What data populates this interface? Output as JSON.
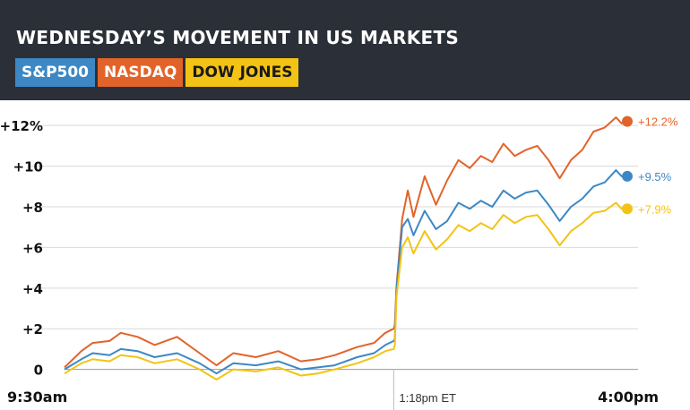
{
  "header": {
    "title": "WEDNESDAY’S MOVEMENT IN US MARKETS"
  },
  "colors": {
    "header_bg": "#2b3038",
    "sp500": "#3d88c4",
    "nasdaq": "#e2632a",
    "dow": "#f3c315"
  },
  "legend": [
    {
      "name": "S&P500",
      "color": "#3d88c4"
    },
    {
      "name": "NASDAQ",
      "color": "#e2632a"
    },
    {
      "name": "DOW JONES",
      "color": "#f3c315"
    }
  ],
  "chart_data": {
    "type": "line",
    "title": "WEDNESDAY’S MOVEMENT IN US MARKETS",
    "y_ticks": [
      {
        "value": 0,
        "label": "0"
      },
      {
        "value": 2,
        "label": "+2"
      },
      {
        "value": 4,
        "label": "+4"
      },
      {
        "value": 6,
        "label": "+6"
      },
      {
        "value": 8,
        "label": "+8"
      },
      {
        "value": 10,
        "label": "+10"
      },
      {
        "value": 12,
        "label": "+12%"
      }
    ],
    "ylim": [
      -0.5,
      12.8
    ],
    "x_labels": {
      "start": "9:30am",
      "end": "4:00pm",
      "event": "1:18pm ET"
    },
    "x_event_fraction": 0.585,
    "grid": true,
    "series": [
      {
        "name": "NASDAQ",
        "color": "#e2632a",
        "end_label": "+12.2%",
        "points": [
          [
            0,
            0.1
          ],
          [
            0.03,
            0.9
          ],
          [
            0.05,
            1.3
          ],
          [
            0.08,
            1.4
          ],
          [
            0.1,
            1.8
          ],
          [
            0.13,
            1.6
          ],
          [
            0.16,
            1.2
          ],
          [
            0.2,
            1.6
          ],
          [
            0.24,
            0.8
          ],
          [
            0.27,
            0.2
          ],
          [
            0.3,
            0.8
          ],
          [
            0.34,
            0.6
          ],
          [
            0.38,
            0.9
          ],
          [
            0.42,
            0.4
          ],
          [
            0.45,
            0.5
          ],
          [
            0.48,
            0.7
          ],
          [
            0.52,
            1.1
          ],
          [
            0.55,
            1.3
          ],
          [
            0.57,
            1.8
          ],
          [
            0.585,
            2.0
          ],
          [
            0.587,
            2.2
          ],
          [
            0.59,
            4.1
          ],
          [
            0.6,
            7.4
          ],
          [
            0.61,
            8.8
          ],
          [
            0.62,
            7.5
          ],
          [
            0.64,
            9.5
          ],
          [
            0.66,
            8.1
          ],
          [
            0.68,
            9.3
          ],
          [
            0.7,
            10.3
          ],
          [
            0.72,
            9.9
          ],
          [
            0.74,
            10.5
          ],
          [
            0.76,
            10.2
          ],
          [
            0.78,
            11.1
          ],
          [
            0.8,
            10.5
          ],
          [
            0.82,
            10.8
          ],
          [
            0.84,
            11.0
          ],
          [
            0.86,
            10.3
          ],
          [
            0.88,
            9.4
          ],
          [
            0.9,
            10.3
          ],
          [
            0.92,
            10.8
          ],
          [
            0.94,
            11.7
          ],
          [
            0.96,
            11.9
          ],
          [
            0.98,
            12.4
          ],
          [
            0.99,
            12.1
          ],
          [
            1.0,
            12.2
          ]
        ]
      },
      {
        "name": "S&P500",
        "color": "#3d88c4",
        "end_label": "+9.5%",
        "points": [
          [
            0,
            0.0
          ],
          [
            0.03,
            0.5
          ],
          [
            0.05,
            0.8
          ],
          [
            0.08,
            0.7
          ],
          [
            0.1,
            1.0
          ],
          [
            0.13,
            0.9
          ],
          [
            0.16,
            0.6
          ],
          [
            0.2,
            0.8
          ],
          [
            0.24,
            0.3
          ],
          [
            0.27,
            -0.2
          ],
          [
            0.3,
            0.3
          ],
          [
            0.34,
            0.2
          ],
          [
            0.38,
            0.4
          ],
          [
            0.42,
            0.0
          ],
          [
            0.45,
            0.1
          ],
          [
            0.48,
            0.2
          ],
          [
            0.52,
            0.6
          ],
          [
            0.55,
            0.8
          ],
          [
            0.57,
            1.2
          ],
          [
            0.585,
            1.4
          ],
          [
            0.587,
            1.5
          ],
          [
            0.59,
            4.0
          ],
          [
            0.6,
            7.0
          ],
          [
            0.61,
            7.4
          ],
          [
            0.62,
            6.6
          ],
          [
            0.64,
            7.8
          ],
          [
            0.66,
            6.9
          ],
          [
            0.68,
            7.3
          ],
          [
            0.7,
            8.2
          ],
          [
            0.72,
            7.9
          ],
          [
            0.74,
            8.3
          ],
          [
            0.76,
            8.0
          ],
          [
            0.78,
            8.8
          ],
          [
            0.8,
            8.4
          ],
          [
            0.82,
            8.7
          ],
          [
            0.84,
            8.8
          ],
          [
            0.86,
            8.1
          ],
          [
            0.88,
            7.3
          ],
          [
            0.9,
            8.0
          ],
          [
            0.92,
            8.4
          ],
          [
            0.94,
            9.0
          ],
          [
            0.96,
            9.2
          ],
          [
            0.98,
            9.8
          ],
          [
            0.99,
            9.5
          ],
          [
            1.0,
            9.5
          ]
        ]
      },
      {
        "name": "DOW JONES",
        "color": "#f3c315",
        "end_label": "+7.9%",
        "points": [
          [
            0,
            -0.2
          ],
          [
            0.03,
            0.3
          ],
          [
            0.05,
            0.5
          ],
          [
            0.08,
            0.4
          ],
          [
            0.1,
            0.7
          ],
          [
            0.13,
            0.6
          ],
          [
            0.16,
            0.3
          ],
          [
            0.2,
            0.5
          ],
          [
            0.24,
            0.0
          ],
          [
            0.27,
            -0.5
          ],
          [
            0.3,
            0.0
          ],
          [
            0.34,
            -0.1
          ],
          [
            0.38,
            0.1
          ],
          [
            0.42,
            -0.3
          ],
          [
            0.45,
            -0.2
          ],
          [
            0.48,
            0.0
          ],
          [
            0.52,
            0.3
          ],
          [
            0.55,
            0.6
          ],
          [
            0.57,
            0.9
          ],
          [
            0.585,
            1.0
          ],
          [
            0.587,
            1.2
          ],
          [
            0.59,
            3.6
          ],
          [
            0.6,
            6.0
          ],
          [
            0.61,
            6.5
          ],
          [
            0.62,
            5.7
          ],
          [
            0.64,
            6.8
          ],
          [
            0.66,
            5.9
          ],
          [
            0.68,
            6.4
          ],
          [
            0.7,
            7.1
          ],
          [
            0.72,
            6.8
          ],
          [
            0.74,
            7.2
          ],
          [
            0.76,
            6.9
          ],
          [
            0.78,
            7.6
          ],
          [
            0.8,
            7.2
          ],
          [
            0.82,
            7.5
          ],
          [
            0.84,
            7.6
          ],
          [
            0.86,
            6.9
          ],
          [
            0.88,
            6.1
          ],
          [
            0.9,
            6.8
          ],
          [
            0.92,
            7.2
          ],
          [
            0.94,
            7.7
          ],
          [
            0.96,
            7.8
          ],
          [
            0.98,
            8.2
          ],
          [
            0.99,
            7.9
          ],
          [
            1.0,
            7.9
          ]
        ]
      }
    ]
  }
}
